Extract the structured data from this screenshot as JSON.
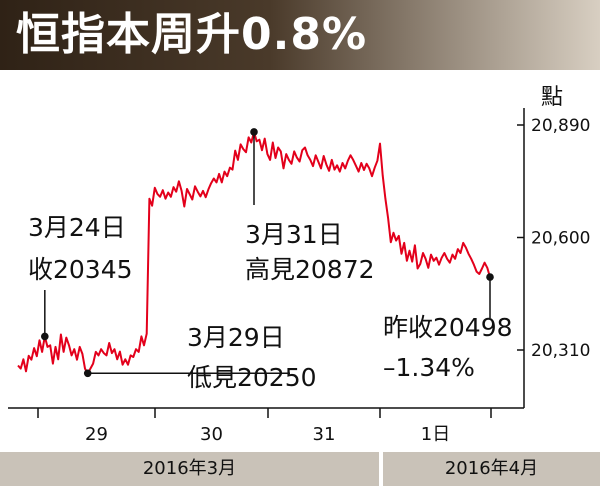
{
  "title": "恒指本周升0.8%",
  "y_unit": "點",
  "chart_data": {
    "type": "line",
    "title": "恒指本周升0.8%",
    "ylabel": "點",
    "y_ticks": [
      20890,
      20600,
      20310
    ],
    "ylim": [
      20200,
      20960
    ],
    "day_labels": [
      "29",
      "30",
      "31",
      "1日"
    ],
    "month_labels": [
      "2016年3月",
      "2016年4月"
    ],
    "color": "#e3001b",
    "values": [
      20270,
      20262,
      20286,
      20255,
      20295,
      20285,
      20315,
      20294,
      20335,
      20305,
      20345,
      20318,
      20322,
      20275,
      20318,
      20286,
      20350,
      20305,
      20342,
      20322,
      20296,
      20312,
      20285,
      20318,
      20300,
      20262,
      20250,
      20262,
      20275,
      20305,
      20296,
      20312,
      20302,
      20296,
      20328,
      20302,
      20312,
      20286,
      20306,
      20272,
      20286,
      20272,
      20296,
      20292,
      20312,
      20305,
      20345,
      20322,
      20352,
      20700,
      20682,
      20728,
      20712,
      20705,
      20722,
      20700,
      20716,
      20705,
      20730,
      20718,
      20745,
      20720,
      20680,
      20725,
      20712,
      20698,
      20732,
      20718,
      20706,
      20720,
      20704,
      20724,
      20740,
      20752,
      20742,
      20764,
      20742,
      20770,
      20758,
      20780,
      20775,
      20824,
      20800,
      20840,
      20828,
      20820,
      20858,
      20845,
      20872,
      20848,
      20852,
      20825,
      20855,
      20815,
      20800,
      20845,
      20805,
      20832,
      20822,
      20778,
      20815,
      20800,
      20790,
      20822,
      20806,
      20796,
      20825,
      20832,
      20812,
      20800,
      20784,
      20812,
      20795,
      20778,
      20810,
      20788,
      20772,
      20800,
      20775,
      20786,
      20770,
      20792,
      20778,
      20798,
      20812,
      20800,
      20785,
      20770,
      20792,
      20774,
      20790,
      20778,
      20758,
      20780,
      20798,
      20842,
      20760,
      20700,
      20650,
      20588,
      20612,
      20592,
      20604,
      20558,
      20586,
      20540,
      20566,
      20538,
      20580,
      20520,
      20532,
      20560,
      20545,
      20522,
      20556,
      20540,
      20548,
      20530,
      20548,
      20560,
      20545,
      20535,
      20556,
      20545,
      20570,
      20560,
      20586,
      20574,
      20558,
      20545,
      20530,
      20512,
      20506,
      20520,
      20535,
      20522,
      20498
    ],
    "annotations": [
      {
        "text_lines": [
          "3月24日",
          "收20345"
        ],
        "value": 20345
      },
      {
        "text_lines": [
          "3月29日",
          "低見20250"
        ],
        "value": 20250
      },
      {
        "text_lines": [
          "3月31日",
          "高見20872"
        ],
        "value": 20872
      },
      {
        "text_lines": [
          "昨收20498",
          "–1.34%"
        ],
        "value": 20498
      }
    ]
  }
}
